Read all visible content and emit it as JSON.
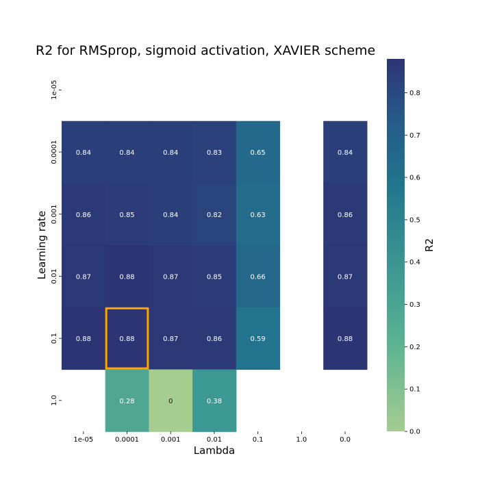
{
  "chart_data": {
    "type": "heatmap",
    "title": "R2 for RMSprop, sigmoid activation, XAVIER scheme",
    "xlabel": "Lambda",
    "ylabel": "Learning rate",
    "x_categories": [
      "1e-05",
      "0.0001",
      "0.001",
      "0.01",
      "0.1",
      "1.0",
      "0.0"
    ],
    "y_categories": [
      "1e-05",
      "0.0001",
      "0.001",
      "0.01",
      "0.1",
      "1.0"
    ],
    "values": [
      [
        null,
        null,
        null,
        null,
        null,
        null,
        null
      ],
      [
        0.84,
        0.84,
        0.84,
        0.83,
        0.65,
        null,
        0.84
      ],
      [
        0.86,
        0.85,
        0.84,
        0.82,
        0.63,
        null,
        0.86
      ],
      [
        0.87,
        0.88,
        0.87,
        0.85,
        0.66,
        null,
        0.87
      ],
      [
        0.88,
        0.88,
        0.87,
        0.86,
        0.59,
        null,
        0.88
      ],
      [
        null,
        0.28,
        0,
        0.38,
        null,
        null,
        null
      ]
    ],
    "highlight": {
      "row": "0.1",
      "col": "0.0001",
      "color": "#ffa500"
    },
    "colorbar": {
      "label": "R2",
      "range": [
        0,
        0.88
      ],
      "ticks": [
        "0.0",
        "0.1",
        "0.2",
        "0.3",
        "0.4",
        "0.5",
        "0.6",
        "0.7",
        "0.8"
      ],
      "colormap": "crest"
    }
  }
}
